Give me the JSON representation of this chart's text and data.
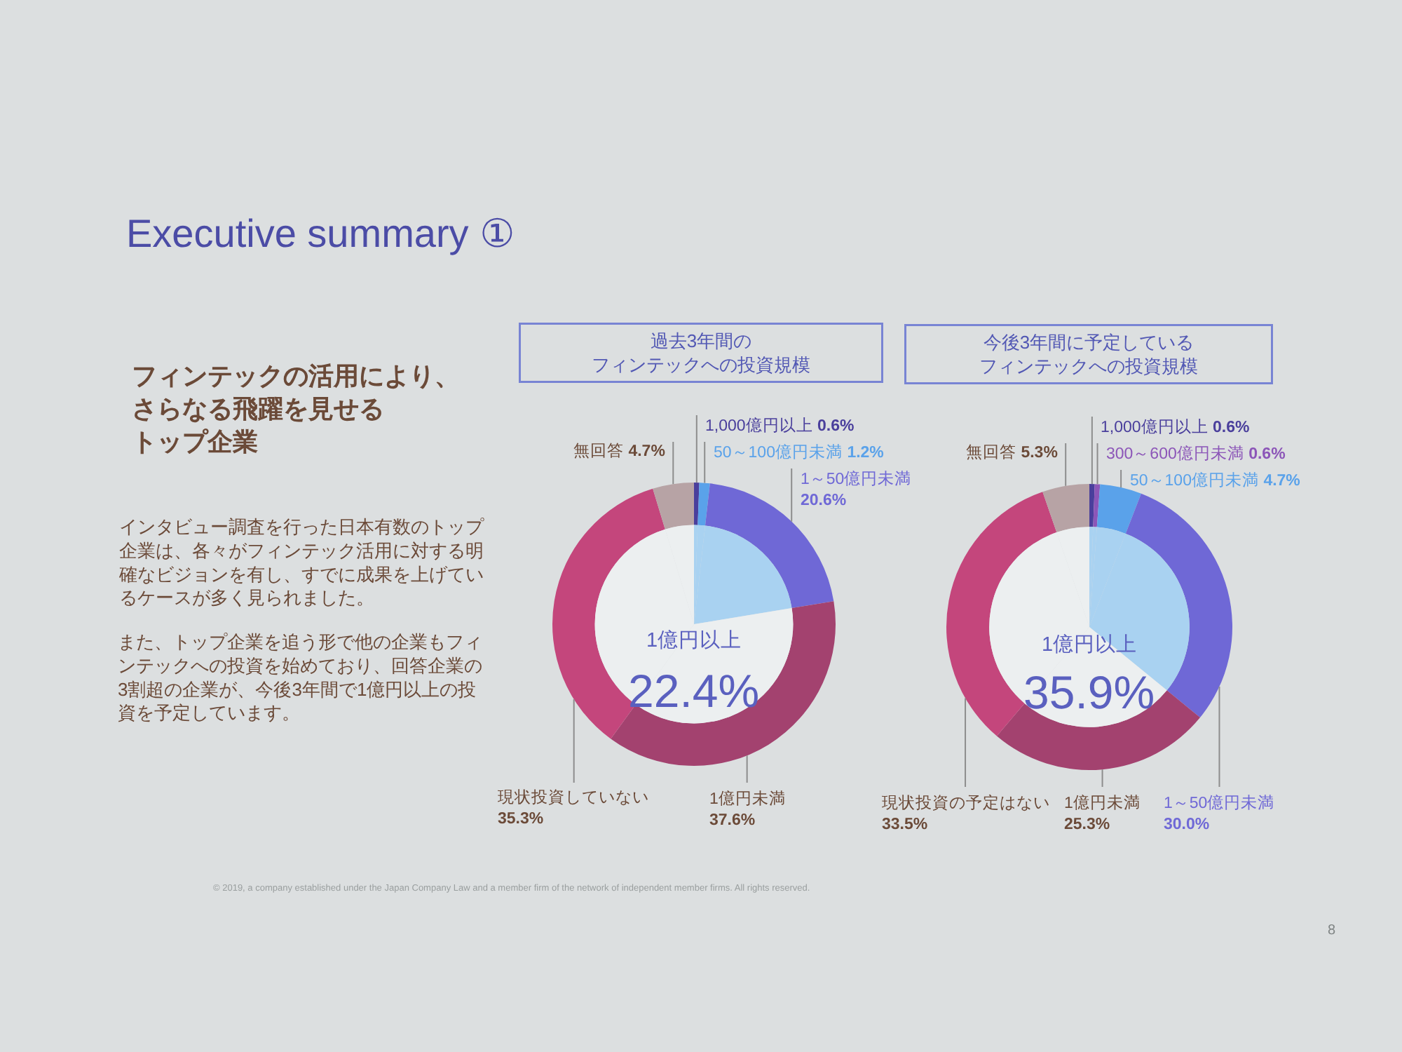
{
  "chart_data": [
    {
      "type": "other",
      "title": "Executive summary ①",
      "subtitle": "フィンテックの活用により、さらなる飛躍を見せるトップ企業",
      "annotations": [
        "インタビュー調査を行った日本有数のトップ企業は、各々がフィンテック活用に対する明確なビジョンを有し、すでに成果を上げているケースが多く見られました。",
        "また、トップ企業を追う形で他の企業もフィンテックへの投資を始めており、回答企業の3割超の企業が、今後3年間で1億円以上の投資を予定しています。",
        "© 2019, a company established under the Japan Company Law and a member firm of the network of independent member firms. All rights reserved.",
        "8"
      ]
    },
    {
      "type": "donut",
      "title": "過去3年間のフィンテックへの投資規模",
      "categories": [
        "1,000億円以上",
        "50～100億円未満",
        "1～50億円未満",
        "1億円未満",
        "現状投資していない",
        "無回答"
      ],
      "series": [
        {
          "values": [
            0.6,
            1.2,
            20.6,
            37.6,
            35.3,
            4.7
          ],
          "colors": [
            "#4a3f9c",
            "#5aa2ea",
            "#6f68d6",
            "#a3426f",
            "#c4467c",
            "#b7a3a5"
          ],
          "value_labels": [
            "0.6%",
            "1.2%",
            "20.6%",
            "37.6%",
            "35.3%",
            "4.7%"
          ]
        },
        {
          "name": "1億円以上",
          "values": [
            0.6,
            1.2,
            20.6,
            37.6,
            35.3,
            4.7
          ],
          "colors": [
            "#a9d2f1",
            "#a9d2f1",
            "#a9d2f1",
            "#eceff0",
            "#eceff0",
            "#eceff0"
          ]
        }
      ],
      "annotations": [
        "22.4%"
      ]
    },
    {
      "type": "donut",
      "title": "今後3年間に予定しているフィンテックへの投資規模",
      "categories": [
        "1,000億円以上",
        "300～600億円未満",
        "50～100億円未満",
        "1～50億円未満",
        "1億円未満",
        "現状投資の予定はない",
        "無回答"
      ],
      "series": [
        {
          "values": [
            0.6,
            0.6,
            4.7,
            30.0,
            25.3,
            33.5,
            5.3
          ],
          "colors": [
            "#4a3f9c",
            "#8c56b8",
            "#5aa2ea",
            "#6f68d6",
            "#a3426f",
            "#c4467c",
            "#b7a3a5"
          ],
          "value_labels": [
            "0.6%",
            "0.6%",
            "4.7%",
            "30.0%",
            "25.3%",
            "33.5%",
            "5.3%"
          ]
        },
        {
          "name": "1億円以上",
          "values": [
            0.6,
            0.6,
            4.7,
            30.0,
            25.3,
            33.5,
            5.3
          ],
          "colors": [
            "#a9d2f1",
            "#a9d2f1",
            "#a9d2f1",
            "#a9d2f1",
            "#eceff0",
            "#eceff0",
            "#eceff0"
          ]
        }
      ],
      "annotations": [
        "35.9%"
      ]
    }
  ]
}
